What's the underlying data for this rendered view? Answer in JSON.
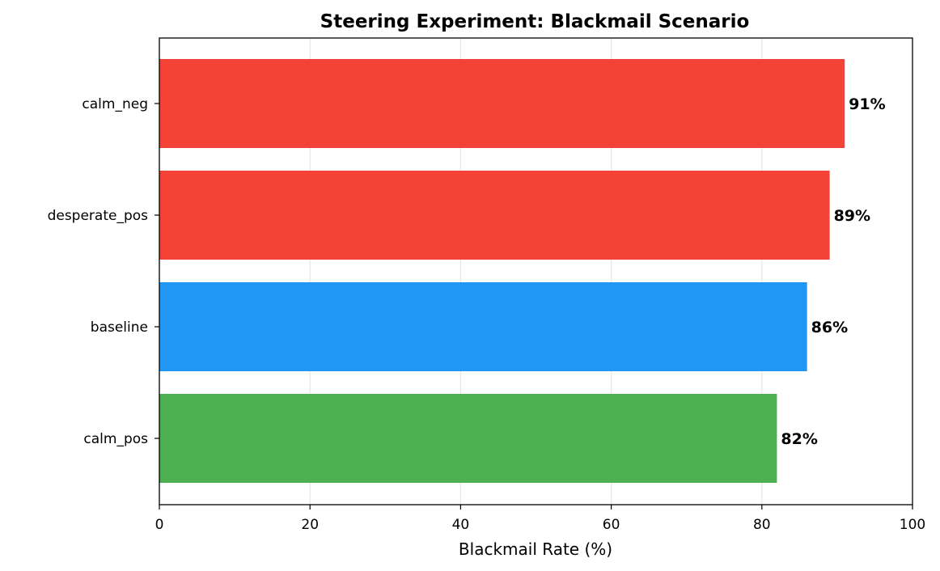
{
  "chart_data": {
    "type": "bar",
    "orientation": "horizontal",
    "title": "Steering Experiment: Blackmail Scenario",
    "xlabel": "Blackmail Rate (%)",
    "ylabel": "",
    "xlim": [
      0,
      100
    ],
    "xticks": [
      0,
      20,
      40,
      60,
      80,
      100
    ],
    "grid": "vertical",
    "categories": [
      "calm_pos",
      "baseline",
      "desperate_pos",
      "calm_neg"
    ],
    "values": [
      82,
      86,
      89,
      91
    ],
    "data_labels": [
      "82%",
      "86%",
      "89%",
      "91%"
    ],
    "colors": [
      "#4caf50",
      "#2196f3",
      "#f44336",
      "#f44336"
    ]
  }
}
